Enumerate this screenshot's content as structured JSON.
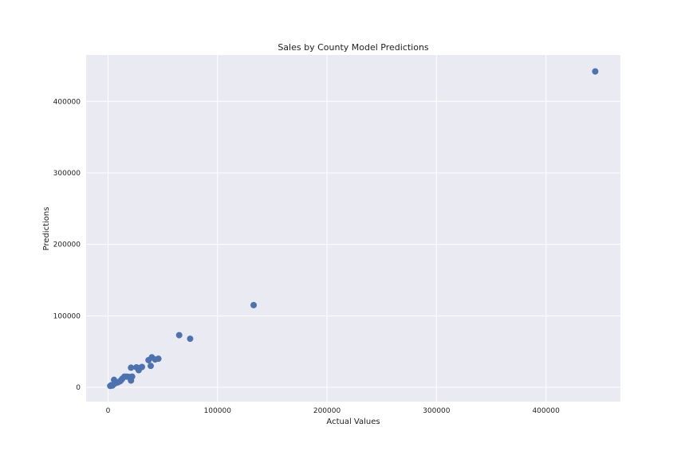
{
  "chart_data": {
    "type": "scatter",
    "title": "Sales by County Model Predictions",
    "xlabel": "Actual Values",
    "ylabel": "Predictions",
    "xlim": [
      -20000,
      468000
    ],
    "ylim": [
      -20000,
      465000
    ],
    "xticks": [
      0,
      100000,
      200000,
      300000,
      400000
    ],
    "yticks": [
      0,
      100000,
      200000,
      300000,
      400000
    ],
    "grid": true,
    "colors": {
      "background": "#eaeaf2",
      "grid": "#ffffff",
      "point": "#4c72b0"
    },
    "series": [
      {
        "points": [
          {
            "x": 2000,
            "y": 2000
          },
          {
            "x": 3000,
            "y": 3000
          },
          {
            "x": 4000,
            "y": 2500
          },
          {
            "x": 5000,
            "y": 4000
          },
          {
            "x": 5500,
            "y": 10500
          },
          {
            "x": 7000,
            "y": 6000
          },
          {
            "x": 9000,
            "y": 7000
          },
          {
            "x": 11000,
            "y": 8500
          },
          {
            "x": 12000,
            "y": 10000
          },
          {
            "x": 13000,
            "y": 12000
          },
          {
            "x": 15000,
            "y": 15000
          },
          {
            "x": 17000,
            "y": 15000
          },
          {
            "x": 19000,
            "y": 14500
          },
          {
            "x": 21000,
            "y": 9500
          },
          {
            "x": 21000,
            "y": 27500
          },
          {
            "x": 22000,
            "y": 15000
          },
          {
            "x": 26000,
            "y": 28000
          },
          {
            "x": 28000,
            "y": 24000
          },
          {
            "x": 29000,
            "y": 27000
          },
          {
            "x": 31000,
            "y": 28500
          },
          {
            "x": 37000,
            "y": 38000
          },
          {
            "x": 39000,
            "y": 30000
          },
          {
            "x": 40000,
            "y": 42000
          },
          {
            "x": 43000,
            "y": 39000
          },
          {
            "x": 46000,
            "y": 40000
          },
          {
            "x": 65000,
            "y": 73000
          },
          {
            "x": 75000,
            "y": 68000
          },
          {
            "x": 133000,
            "y": 115000
          },
          {
            "x": 445000,
            "y": 442000
          }
        ]
      }
    ]
  }
}
